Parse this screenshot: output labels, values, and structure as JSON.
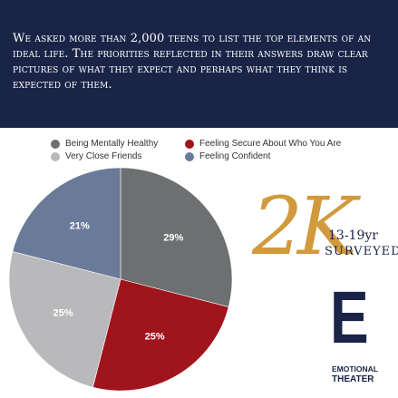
{
  "header": {
    "text": "We asked more than 2,000 teens to list the top elements of an ideal life. The priorities reflected in their answers draw clear pictures of what they expect and perhaps what they think is expected of them."
  },
  "chart_data": {
    "type": "pie",
    "title": "",
    "start_angle_deg": 0,
    "direction": "clockwise",
    "legend_position": "top",
    "slices": [
      {
        "label": "Being Mentally Healthy",
        "value": 29,
        "display": "29%",
        "color": "#6c7071"
      },
      {
        "label": "Feeling Secure About Who You Are",
        "value": 25,
        "display": "25%",
        "color": "#a0141c"
      },
      {
        "label": "Very Close Friends",
        "value": 25,
        "display": "25%",
        "color": "#b9b9bb"
      },
      {
        "label": "Feeling Confident",
        "value": 21,
        "display": "21%",
        "color": "#6a7a99"
      }
    ]
  },
  "stat": {
    "big": "2K",
    "range": "13-19yr",
    "label": "SURVEYED"
  },
  "logo": {
    "letter": "E",
    "line1": "EMOTIONAL",
    "line2": "THEATER"
  },
  "colors": {
    "banner": "#1a2447",
    "accent_gold": "#d19a3c",
    "navy": "#1a2447"
  }
}
